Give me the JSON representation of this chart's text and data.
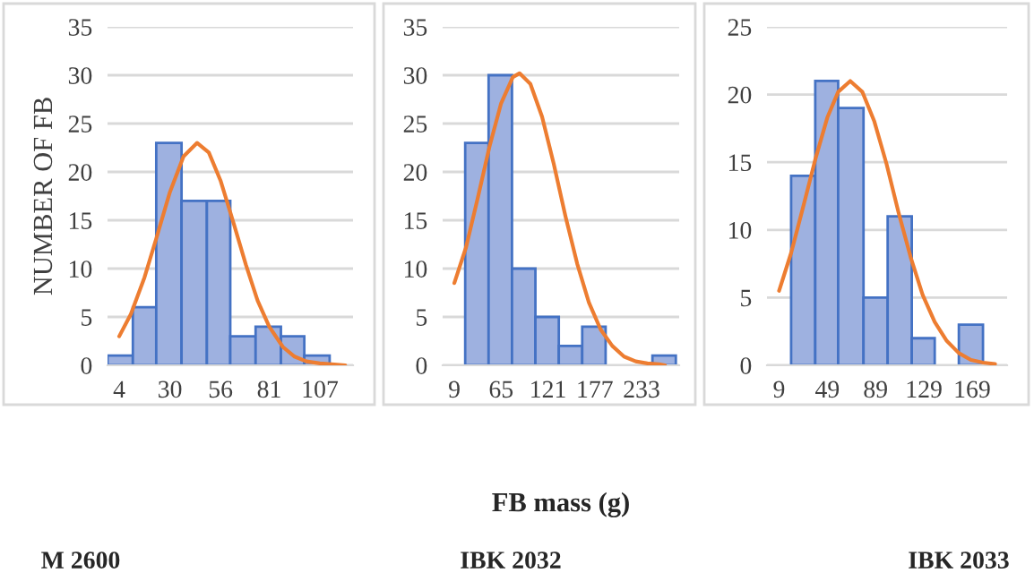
{
  "chart_data": [
    {
      "type": "histogram",
      "ylabel": "NUMBER OF FB",
      "bins": [
        -2,
        11,
        23,
        36,
        49,
        61,
        74,
        87,
        99,
        112
      ],
      "values": [
        1,
        6,
        23,
        17,
        17,
        3,
        4,
        3,
        1
      ],
      "color": "#9eb1e0",
      "series": [
        {
          "type": "line",
          "color": "#ed7d31",
          "x": [
            4,
            10,
            17,
            23,
            30,
            37,
            44,
            50,
            56,
            63,
            69,
            75,
            81,
            88,
            94,
            100,
            107,
            113,
            120
          ],
          "values": [
            3.0,
            5.3,
            9.1,
            13.1,
            17.9,
            21.6,
            23,
            22.0,
            19.1,
            14.5,
            10.4,
            6.7,
            4.0,
            1.9,
            0.9,
            0.4,
            0.2,
            0.1,
            0
          ]
        }
      ],
      "xlim": [
        -2,
        124
      ],
      "xticks": [
        4,
        30,
        56,
        81,
        107
      ],
      "ylim": [
        0,
        35
      ],
      "yticks": [
        0,
        5,
        10,
        15,
        20,
        25,
        30,
        35
      ],
      "grid": "y",
      "annotations": [
        "M 2600"
      ]
    },
    {
      "type": "histogram",
      "xlabel": "FB mass (g)",
      "bins": [
        22,
        50,
        78,
        106,
        134,
        162,
        190,
        218,
        246,
        274
      ],
      "values": [
        23,
        30,
        10,
        5,
        2,
        4,
        0,
        0,
        1
      ],
      "color": "#9eb1e0",
      "series": [
        {
          "type": "line",
          "color": "#ed7d31",
          "x": [
            9,
            23,
            37,
            51,
            65,
            79,
            87,
            100,
            114,
            128,
            142,
            156,
            170,
            184,
            198,
            212,
            226,
            240,
            254,
            261
          ],
          "values": [
            8.5,
            12.2,
            17.3,
            22.6,
            27.1,
            29.8,
            30.2,
            29.1,
            25.7,
            20.8,
            15.4,
            10.5,
            6.5,
            3.7,
            2.0,
            0.9,
            0.4,
            0.2,
            0.1,
            0
          ]
        }
      ],
      "xlim": [
        -5,
        278
      ],
      "xticks": [
        9,
        65,
        121,
        177,
        233
      ],
      "ylim": [
        0,
        35
      ],
      "yticks": [
        0,
        5,
        10,
        15,
        20,
        25,
        30,
        35
      ],
      "grid": "y",
      "annotations": [
        "IBK 2032"
      ]
    },
    {
      "type": "histogram",
      "bins": [
        19,
        39,
        58,
        79,
        99,
        119,
        138,
        158,
        178
      ],
      "values": [
        14,
        21,
        19,
        5,
        11,
        2,
        0,
        3
      ],
      "color": "#9eb1e0",
      "series": [
        {
          "type": "line",
          "color": "#ed7d31",
          "x": [
            9,
            19,
            29,
            39,
            49,
            58,
            68,
            78,
            88,
            98,
            108,
            118,
            128,
            138,
            148,
            158,
            168,
            178,
            188
          ],
          "values": [
            5.5,
            8.3,
            11.7,
            15.2,
            18.3,
            20.2,
            21,
            20.2,
            18.0,
            14.9,
            11.3,
            8.0,
            5.2,
            3.2,
            1.8,
            0.9,
            0.4,
            0.2,
            0.1
          ]
        }
      ],
      "xlim": [
        -1,
        198
      ],
      "xticks": [
        9,
        49,
        89,
        129,
        169
      ],
      "ylim": [
        0,
        25
      ],
      "yticks": [
        0,
        5,
        10,
        15,
        20,
        25
      ],
      "grid": "y",
      "annotations": [
        "IBK 2033"
      ]
    }
  ]
}
